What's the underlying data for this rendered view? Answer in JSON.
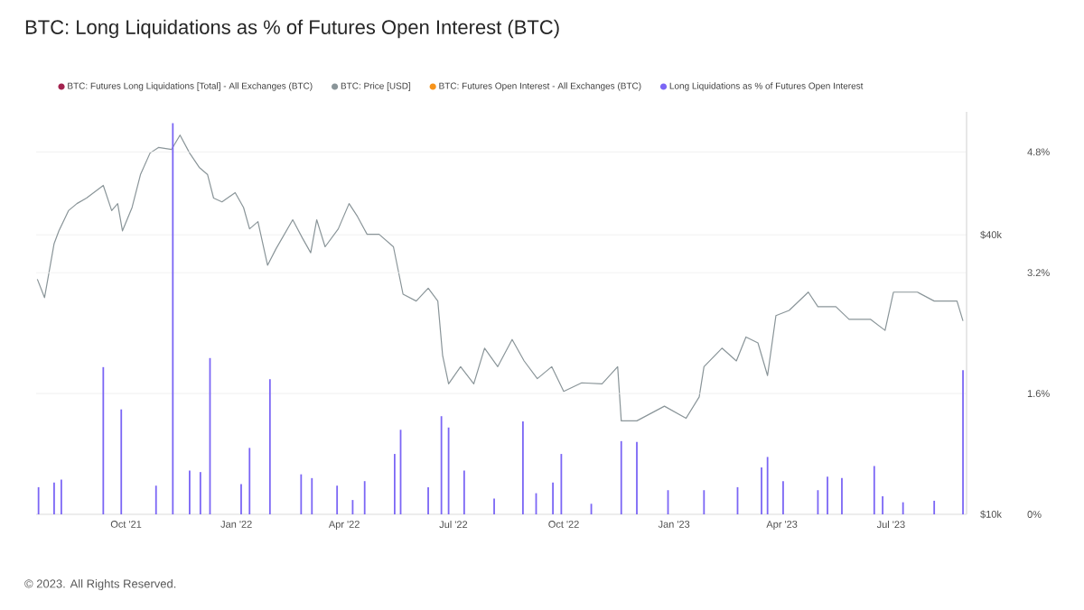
{
  "chart_data": {
    "type": "line",
    "title": "BTC: Long Liquidations as % of Futures Open Interest (BTC)",
    "annotations": [
      "© 2023. All Rights Reserved."
    ],
    "xlim": [
      "2021-07-18",
      "2023-09-02"
    ],
    "xticks": [
      {
        "value": "2021-10-01",
        "label": "Oct '21"
      },
      {
        "value": "2022-01-01",
        "label": "Jan '22"
      },
      {
        "value": "2022-04-01",
        "label": "Apr '22"
      },
      {
        "value": "2022-07-01",
        "label": "Jul '22"
      },
      {
        "value": "2022-10-01",
        "label": "Oct '22"
      },
      {
        "value": "2023-01-01",
        "label": "Jan '23"
      },
      {
        "value": "2023-04-01",
        "label": "Apr '23"
      },
      {
        "value": "2023-07-01",
        "label": "Jul '23"
      }
    ],
    "log": "y",
    "ylim": [
      10000,
      73600
    ],
    "yticks": [
      {
        "value": 10000,
        "label": "$10k"
      },
      {
        "value": 40000,
        "label": "$40k"
      }
    ],
    "y2lim": [
      0,
      5.33
    ],
    "y2ticks": [
      {
        "value": 0,
        "label": "0%"
      },
      {
        "value": 1.6,
        "label": "1.6%"
      },
      {
        "value": 3.2,
        "label": "3.2%"
      },
      {
        "value": 4.8,
        "label": "4.8%"
      }
    ],
    "grid": "y",
    "legend": "top",
    "marker": "none",
    "series": [
      {
        "name": "BTC: Futures Long Liquidations [Total] - All Exchanges (BTC)",
        "color": "#a3234f"
      },
      {
        "name": "BTC: Price [USD]",
        "axis": "y",
        "color": "#8a9599",
        "line_style": "solid",
        "x": [
          "2021-07-19",
          "2021-07-25",
          "2021-08-02",
          "2021-08-06",
          "2021-08-14",
          "2021-08-21",
          "2021-08-29",
          "2021-09-12",
          "2021-09-19",
          "2021-09-24",
          "2021-09-28",
          "2021-10-06",
          "2021-10-13",
          "2021-10-21",
          "2021-10-28",
          "2021-11-08",
          "2021-11-15",
          "2021-11-23",
          "2021-12-01",
          "2021-12-08",
          "2021-12-13",
          "2021-12-20",
          "2021-12-31",
          "2022-01-07",
          "2022-01-12",
          "2022-01-19",
          "2022-01-27",
          "2022-02-03",
          "2022-02-17",
          "2022-02-25",
          "2022-03-04",
          "2022-03-09",
          "2022-03-16",
          "2022-03-27",
          "2022-04-05",
          "2022-04-12",
          "2022-04-20",
          "2022-04-30",
          "2022-05-12",
          "2022-05-20",
          "2022-05-31",
          "2022-06-10",
          "2022-06-18",
          "2022-06-22",
          "2022-06-27",
          "2022-07-07",
          "2022-07-18",
          "2022-07-27",
          "2022-08-07",
          "2022-08-19",
          "2022-08-29",
          "2022-09-09",
          "2022-09-21",
          "2022-10-01",
          "2022-10-16",
          "2022-11-02",
          "2022-11-15",
          "2022-11-18",
          "2022-12-01",
          "2022-12-24",
          "2023-01-11",
          "2023-01-22",
          "2023-01-26",
          "2023-02-10",
          "2023-02-22",
          "2023-03-02",
          "2023-03-12",
          "2023-03-20",
          "2023-03-27",
          "2023-04-07",
          "2023-04-23",
          "2023-05-01",
          "2023-05-16",
          "2023-05-27",
          "2023-06-14",
          "2023-06-26",
          "2023-07-03",
          "2023-07-23",
          "2023-08-06",
          "2023-08-25",
          "2023-08-30"
        ],
        "values": [
          32100,
          29300,
          38300,
          40800,
          45100,
          46700,
          48000,
          51100,
          45100,
          46700,
          40800,
          45800,
          53900,
          60000,
          61700,
          61100,
          65600,
          60000,
          55900,
          53900,
          48000,
          47100,
          49300,
          45800,
          41200,
          42700,
          34400,
          37300,
          43100,
          39400,
          36600,
          43100,
          37700,
          41200,
          46700,
          43800,
          40100,
          40100,
          37700,
          29800,
          28800,
          30700,
          28800,
          22000,
          19100,
          20800,
          19100,
          22800,
          20800,
          23800,
          21400,
          19600,
          20800,
          18400,
          19200,
          19100,
          20800,
          15900,
          15900,
          17100,
          16100,
          17900,
          20800,
          22800,
          21400,
          24100,
          23400,
          19900,
          26800,
          27500,
          30100,
          28000,
          28000,
          26300,
          26300,
          24900,
          30100,
          30100,
          28800,
          28800,
          26100
        ]
      },
      {
        "name": "BTC: Futures Open Interest - All Exchanges (BTC)",
        "color": "#f7931a"
      },
      {
        "name": "Long Liquidations as % of Futures Open Interest",
        "type": "bar",
        "axis": "y2",
        "color": "#7b66f5",
        "x": [
          "2021-07-20",
          "2021-08-02",
          "2021-08-08",
          "2021-09-12",
          "2021-09-27",
          "2021-10-26",
          "2021-11-09",
          "2021-11-23",
          "2021-12-02",
          "2021-12-10",
          "2022-01-05",
          "2022-01-12",
          "2022-01-29",
          "2022-02-24",
          "2022-03-05",
          "2022-03-26",
          "2022-04-08",
          "2022-04-18",
          "2022-05-13",
          "2022-05-18",
          "2022-06-10",
          "2022-06-21",
          "2022-06-27",
          "2022-07-10",
          "2022-08-04",
          "2022-08-28",
          "2022-09-08",
          "2022-09-22",
          "2022-09-29",
          "2022-10-24",
          "2022-11-18",
          "2022-12-01",
          "2022-12-27",
          "2023-01-26",
          "2023-02-23",
          "2023-03-15",
          "2023-03-20",
          "2023-04-02",
          "2023-05-01",
          "2023-05-09",
          "2023-05-21",
          "2023-06-17",
          "2023-06-24",
          "2023-07-11",
          "2023-08-06",
          "2023-08-30"
        ],
        "values": [
          0.36,
          0.42,
          0.46,
          1.95,
          1.39,
          0.38,
          5.18,
          0.58,
          0.56,
          2.07,
          0.4,
          0.88,
          1.79,
          0.53,
          0.48,
          0.38,
          0.19,
          0.44,
          0.8,
          1.12,
          0.36,
          1.3,
          1.15,
          0.58,
          0.21,
          1.23,
          0.28,
          0.42,
          0.8,
          0.14,
          0.97,
          0.96,
          0.32,
          0.32,
          0.36,
          0.62,
          0.76,
          0.44,
          0.32,
          0.5,
          0.48,
          0.64,
          0.24,
          0.16,
          0.18,
          1.91
        ]
      }
    ]
  }
}
